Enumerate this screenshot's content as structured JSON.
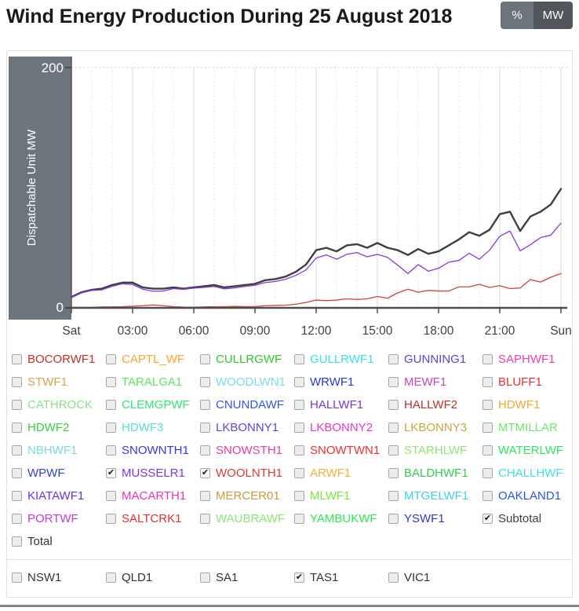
{
  "header": {
    "title": "Wind Energy Production During 25 August 2018",
    "percent_label": "%",
    "mw_label": "MW",
    "active_unit": "MW"
  },
  "chart": {
    "y_axis_title": "Dispatchable Unit MW",
    "y_tick_top": "200",
    "y_tick_bottom": "0",
    "x_ticks": [
      "Sat",
      "03:00",
      "06:00",
      "09:00",
      "12:00",
      "15:00",
      "18:00",
      "21:00",
      "Sun"
    ],
    "panel_color": "#6c757d",
    "axis_color": "#4d4d4d",
    "grid_major_color": "#d8d8d8",
    "grid_minor_color": "#e4e4e4",
    "top_gridline_color": "#cfcfcf"
  },
  "chart_data": {
    "type": "line",
    "title": "Wind Energy Production During 25 August 2018",
    "xlabel": "",
    "ylabel": "Dispatchable Unit MW",
    "ylim": [
      0,
      200
    ],
    "x_start": "Sat 00:00",
    "x_end": "Sun 00:00",
    "x_step_minutes": 30,
    "x_tick_labels": [
      "Sat",
      "03:00",
      "06:00",
      "09:00",
      "12:00",
      "15:00",
      "18:00",
      "21:00",
      "Sun"
    ],
    "grid": true,
    "legend_position": "none",
    "series": [
      {
        "name": "Subtotal",
        "color": "#3f3f3f",
        "width": 2.4,
        "values": [
          9,
          13,
          15,
          16,
          19,
          21,
          21,
          17,
          16,
          16,
          17,
          16,
          17,
          18,
          19,
          17,
          18,
          19,
          20,
          23,
          24,
          26,
          30,
          36,
          48,
          50,
          47,
          52,
          53,
          50,
          54,
          50,
          48,
          44,
          49,
          45,
          47,
          52,
          57,
          63,
          60,
          65,
          78,
          80,
          64,
          76,
          80,
          86,
          99
        ]
      },
      {
        "name": "WOOLNTH1",
        "color": "#d04343",
        "width": 1.3,
        "values": [
          0.4,
          0.4,
          0.5,
          0.8,
          0.8,
          1,
          1.4,
          1.8,
          2.4,
          1.8,
          1,
          0.6,
          0.5,
          0.8,
          1,
          1,
          1.2,
          1,
          1,
          1.8,
          2,
          2.2,
          3,
          4.5,
          6.5,
          6,
          6.5,
          7.5,
          7,
          7.5,
          9.5,
          8,
          12.5,
          15.5,
          13,
          14.5,
          14,
          14,
          17.5,
          17.5,
          19.5,
          17,
          18.5,
          16,
          16.5,
          23.5,
          21.5,
          25.5,
          28.5
        ]
      },
      {
        "name": "MUSSELR1",
        "color": "#8a36e0",
        "width": 1.3,
        "values": [
          8.5,
          12.5,
          14.5,
          15,
          18,
          20,
          19.5,
          15.5,
          13.8,
          14,
          16,
          15.4,
          16.4,
          17,
          17.8,
          15.8,
          16.6,
          17.8,
          18.8,
          21,
          22,
          23.8,
          27,
          31.5,
          41.5,
          44,
          40.5,
          44.5,
          46,
          42.5,
          44.5,
          42,
          35.5,
          28.5,
          36,
          30.5,
          33,
          38,
          39.5,
          45.5,
          40.5,
          48,
          59.5,
          64,
          47.5,
          52.5,
          58.5,
          60.5,
          70.5
        ]
      }
    ]
  },
  "legend": {
    "items": [
      {
        "label": "BOCORWF1",
        "color": "#c23028",
        "checked": false
      },
      {
        "label": "CAPTL_WF",
        "color": "#ffa426",
        "checked": false
      },
      {
        "label": "CULLRGWF",
        "color": "#2fc92f",
        "checked": false
      },
      {
        "label": "GULLRWF1",
        "color": "#36dfee",
        "checked": false
      },
      {
        "label": "GUNNING1",
        "color": "#6240d9",
        "checked": false
      },
      {
        "label": "SAPHWF1",
        "color": "#f23cb4",
        "checked": false
      },
      {
        "label": "STWF1",
        "color": "#d9a349",
        "checked": false
      },
      {
        "label": "TARALGA1",
        "color": "#5fe65f",
        "checked": false
      },
      {
        "label": "WOODLWN1",
        "color": "#7cdbe6",
        "checked": false
      },
      {
        "label": "WRWF1",
        "color": "#2634d9",
        "checked": false
      },
      {
        "label": "MEWF1",
        "color": "#c944b8",
        "checked": false
      },
      {
        "label": "BLUFF1",
        "color": "#f02e2e",
        "checked": false
      },
      {
        "label": "CATHROCK",
        "color": "#8ce08c",
        "checked": false
      },
      {
        "label": "CLEMGPWF",
        "color": "#2ee673",
        "checked": false
      },
      {
        "label": "CNUNDAWF",
        "color": "#3355e6",
        "checked": false
      },
      {
        "label": "HALLWF1",
        "color": "#7b36e0",
        "checked": false
      },
      {
        "label": "HALLWF2",
        "color": "#c03028",
        "checked": false
      },
      {
        "label": "HDWF1",
        "color": "#f5a62e",
        "checked": false
      },
      {
        "label": "HDWF2",
        "color": "#36cc44",
        "checked": false
      },
      {
        "label": "HDWF3",
        "color": "#4fe0e0",
        "checked": false
      },
      {
        "label": "LKBONNY1",
        "color": "#5a46e0",
        "checked": false
      },
      {
        "label": "LKBONNY2",
        "color": "#f036c0",
        "checked": false
      },
      {
        "label": "LKBONNY3",
        "color": "#cca43c",
        "checked": false
      },
      {
        "label": "MTMILLAR",
        "color": "#6fe66f",
        "checked": false
      },
      {
        "label": "NBHWF1",
        "color": "#7cd9e6",
        "checked": false
      },
      {
        "label": "SNOWNTH1",
        "color": "#3338e6",
        "checked": false
      },
      {
        "label": "SNOWSTH1",
        "color": "#e63ca6",
        "checked": false
      },
      {
        "label": "SNOWTWN1",
        "color": "#f02e2e",
        "checked": false
      },
      {
        "label": "STARHLWF",
        "color": "#90e673",
        "checked": false
      },
      {
        "label": "WATERLWF",
        "color": "#2ee65c",
        "checked": false
      },
      {
        "label": "WPWF",
        "color": "#3340cc",
        "checked": false
      },
      {
        "label": "MUSSELR1",
        "color": "#7b36e0",
        "checked": true
      },
      {
        "label": "WOOLNTH1",
        "color": "#d93838",
        "checked": true
      },
      {
        "label": "ARWF1",
        "color": "#f5b033",
        "checked": false
      },
      {
        "label": "BALDHWF1",
        "color": "#36cc50",
        "checked": false
      },
      {
        "label": "CHALLHWF",
        "color": "#40e0e0",
        "checked": false
      },
      {
        "label": "KIATAWF1",
        "color": "#6236e0",
        "checked": false
      },
      {
        "label": "MACARTH1",
        "color": "#f033b8",
        "checked": false
      },
      {
        "label": "MERCER01",
        "color": "#cc9a3c",
        "checked": false
      },
      {
        "label": "MLWF1",
        "color": "#7fe63c",
        "checked": false
      },
      {
        "label": "MTGELWF1",
        "color": "#3cd4e6",
        "checked": false
      },
      {
        "label": "OAKLAND1",
        "color": "#2952e6",
        "checked": false
      },
      {
        "label": "PORTWF",
        "color": "#c636d9",
        "checked": false
      },
      {
        "label": "SALTCRK1",
        "color": "#e62e2e",
        "checked": false
      },
      {
        "label": "WAUBRAWF",
        "color": "#86e673",
        "checked": false
      },
      {
        "label": "YAMBUKWF",
        "color": "#2ee650",
        "checked": false
      },
      {
        "label": "YSWF1",
        "color": "#3336cc",
        "checked": false
      },
      {
        "label": "Subtotal",
        "color": "#3f3f3f",
        "checked": true
      },
      {
        "label": "Total",
        "color": "#333333",
        "checked": false
      }
    ]
  },
  "regions": {
    "items": [
      {
        "label": "NSW1",
        "color": "#333333",
        "checked": false
      },
      {
        "label": "QLD1",
        "color": "#333333",
        "checked": false
      },
      {
        "label": "SA1",
        "color": "#333333",
        "checked": false
      },
      {
        "label": "TAS1",
        "color": "#333333",
        "checked": true
      },
      {
        "label": "VIC1",
        "color": "#333333",
        "checked": false
      }
    ]
  }
}
